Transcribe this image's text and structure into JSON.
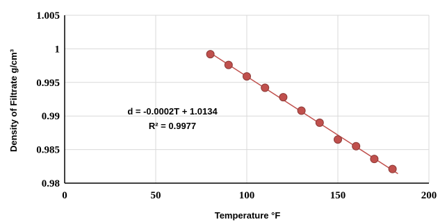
{
  "chart_data": {
    "type": "scatter",
    "title": "",
    "xlabel": "Temperature °F",
    "ylabel": "Density of Filtrate g/cm³",
    "xlim": [
      0,
      200
    ],
    "ylim": [
      0.98,
      1.005
    ],
    "x_ticks": [
      0,
      50,
      100,
      150,
      200
    ],
    "y_ticks": [
      0.98,
      0.985,
      0.99,
      0.995,
      1,
      1.005
    ],
    "x_tick_labels": [
      "0",
      "50",
      "100",
      "150",
      "200"
    ],
    "y_tick_labels": [
      "0.98",
      "0.985",
      "0.99",
      "0.995",
      "1",
      "1.005"
    ],
    "grid": true,
    "legend": "none",
    "marker_color": "#C0504D",
    "trendline_color": "#C0504D",
    "x": [
      80,
      90,
      100,
      110,
      120,
      130,
      140,
      150,
      160,
      170,
      180
    ],
    "y": [
      0.9992,
      0.9976,
      0.9959,
      0.9942,
      0.9928,
      0.9908,
      0.989,
      0.9865,
      0.9855,
      0.9836,
      0.9821
    ],
    "trendline": {
      "type": "linear",
      "slope": -0.0002,
      "intercept": 1.0134,
      "x_range": [
        80,
        183
      ],
      "equation_label": "d = -0.0002T + 1.0134",
      "r2_label": "R² = 0.9977"
    }
  }
}
